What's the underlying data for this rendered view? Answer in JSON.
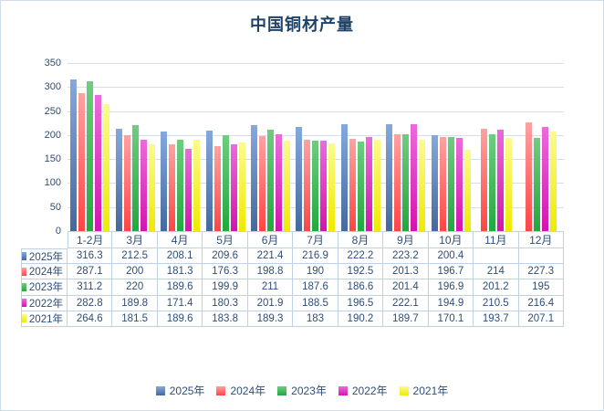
{
  "title": "中国铜材产量",
  "colors": {
    "title_text": "#1f4266",
    "axis_text": "#2f4e78",
    "gridline": "#d4dfeb",
    "table_border": "#bdd2e7",
    "frame_border": "#cdddea"
  },
  "chart_data": {
    "type": "bar",
    "title": "中国铜材产量",
    "categories": [
      "1-2月",
      "3月",
      "4月",
      "5月",
      "6月",
      "7月",
      "8月",
      "9月",
      "10月",
      "11月",
      "12月"
    ],
    "series": [
      {
        "name": "2025年",
        "color_light": "#85a9dc",
        "color_dark": "#44699e",
        "values": [
          316.3,
          212.5,
          208.1,
          209.6,
          221.4,
          216.9,
          222.2,
          223.2,
          200.4,
          null,
          null
        ]
      },
      {
        "name": "2024年",
        "color_light": "#ffa2a2",
        "color_dark": "#ff4545",
        "values": [
          287.1,
          200,
          181.3,
          176.3,
          198.8,
          190,
          192.5,
          201.3,
          196.7,
          214,
          227.3
        ]
      },
      {
        "name": "2023年",
        "color_light": "#6fcd80",
        "color_dark": "#23a73e",
        "values": [
          311.2,
          220,
          189.6,
          199.9,
          211,
          187.6,
          186.6,
          201.4,
          196.9,
          201.2,
          195
        ]
      },
      {
        "name": "2022年",
        "color_light": "#ec6bdc",
        "color_dark": "#d215ae",
        "values": [
          282.8,
          189.8,
          171.4,
          180.3,
          201.9,
          188.5,
          196.5,
          222.1,
          194.9,
          210.5,
          216.4
        ]
      },
      {
        "name": "2021年",
        "color_light": "#fbfb8e",
        "color_dark": "#f0ea00",
        "values": [
          264.6,
          181.5,
          189.6,
          183.8,
          189.3,
          183,
          190.2,
          189.7,
          170.1,
          193.7,
          207.1
        ]
      }
    ],
    "xlabel": "",
    "ylabel": "",
    "ylim": [
      0,
      350
    ],
    "ytick_step": 50,
    "grid": true,
    "legend_position": "bottom",
    "data_table": true
  }
}
